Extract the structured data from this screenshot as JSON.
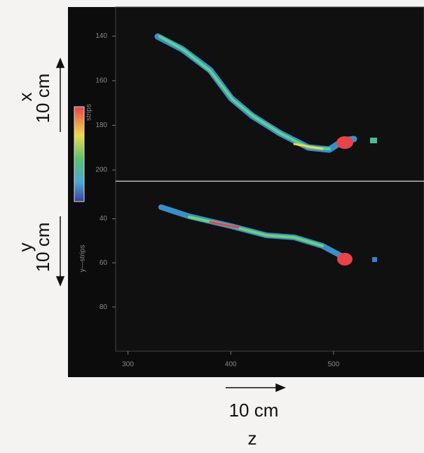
{
  "figure": {
    "x_label": "x",
    "x_scale": "10 cm",
    "y_label": "y",
    "y_scale": "10 cm",
    "z_label": "z",
    "z_scale": "10 cm",
    "colorbar_label": "strips",
    "bottom_axis_label": "y—strips",
    "zaxis": {
      "xlim": [
        288,
        588
      ],
      "xticks": [
        300,
        400,
        500
      ]
    },
    "panels": [
      {
        "ylim": [
          127,
          205
        ],
        "yticks": [
          140,
          160,
          180,
          200
        ]
      },
      {
        "ylim": [
          23,
          100
        ],
        "yticks": [
          40,
          60,
          80
        ]
      }
    ]
  }
}
